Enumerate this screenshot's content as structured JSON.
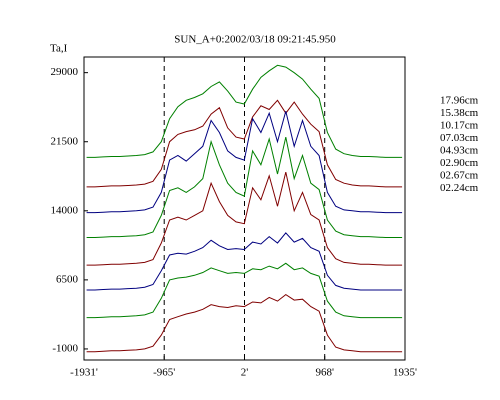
{
  "chart_data": {
    "type": "line",
    "title": "SUN_A+0:2002/03/18 09:21:45.950",
    "y_label": "Ta,I",
    "x": [
      -1900,
      -1800,
      -1700,
      -1600,
      -1500,
      -1400,
      -1300,
      -1200,
      -1100,
      -1000,
      -900,
      -800,
      -700,
      -600,
      -500,
      -400,
      -300,
      -200,
      -100,
      0,
      100,
      200,
      300,
      400,
      500,
      600,
      700,
      800,
      900,
      1000,
      1100,
      1200,
      1300,
      1400,
      1500,
      1600,
      1700,
      1800,
      1900
    ],
    "series": [
      {
        "name": "17.96cm",
        "color": "#008000",
        "values": [
          19800,
          19800,
          19850,
          19900,
          19900,
          19950,
          20000,
          20100,
          20400,
          21500,
          24000,
          25300,
          26000,
          26300,
          26700,
          27500,
          28000,
          27000,
          25800,
          25600,
          27200,
          28500,
          29200,
          29800,
          29600,
          29000,
          28300,
          27200,
          26200,
          22500,
          20700,
          20200,
          20000,
          19900,
          19900,
          19850,
          19800,
          19800,
          19800
        ]
      },
      {
        "name": "15.38cm",
        "color": "#800000",
        "values": [
          16600,
          16600,
          16650,
          16700,
          16700,
          16750,
          16800,
          16900,
          17200,
          18500,
          21500,
          22300,
          22600,
          22800,
          23200,
          24500,
          25200,
          23000,
          22000,
          21800,
          24200,
          25400,
          25000,
          26000,
          24600,
          25800,
          24500,
          23400,
          22600,
          19000,
          17400,
          17000,
          16800,
          16700,
          16700,
          16650,
          16600,
          16600,
          16600
        ]
      },
      {
        "name": "10.17cm",
        "color": "#000080",
        "values": [
          13800,
          13800,
          13850,
          13900,
          13900,
          13950,
          14000,
          14100,
          14400,
          16000,
          19500,
          20000,
          19400,
          20200,
          21000,
          23800,
          22500,
          20500,
          19800,
          19500,
          24000,
          22500,
          24600,
          21500,
          24800,
          21000,
          23800,
          21000,
          20000,
          16000,
          14500,
          14100,
          14000,
          13900,
          13900,
          13850,
          13800,
          13800,
          13800
        ]
      },
      {
        "name": "07.03cm",
        "color": "#008000",
        "values": [
          11100,
          11100,
          11150,
          11200,
          11200,
          11250,
          11300,
          11400,
          11700,
          13500,
          16200,
          16500,
          16000,
          16600,
          17500,
          21500,
          19000,
          17000,
          16000,
          15600,
          20500,
          19000,
          21800,
          18000,
          22000,
          17500,
          20000,
          17000,
          16300,
          13000,
          11800,
          11400,
          11300,
          11200,
          11200,
          11150,
          11100,
          11100,
          11100
        ]
      },
      {
        "name": "04.93cm",
        "color": "#800000",
        "values": [
          8100,
          8100,
          8150,
          8200,
          8200,
          8250,
          8300,
          8400,
          8700,
          10500,
          13000,
          13300,
          13000,
          13500,
          14000,
          17000,
          15000,
          13500,
          12800,
          12600,
          16500,
          15200,
          17800,
          14500,
          18200,
          14000,
          16000,
          13600,
          13000,
          10000,
          8800,
          8400,
          8300,
          8200,
          8200,
          8150,
          8100,
          8100,
          8100
        ]
      },
      {
        "name": "02.90cm",
        "color": "#000080",
        "values": [
          5400,
          5400,
          5450,
          5500,
          5500,
          5550,
          5600,
          5700,
          6000,
          7500,
          9200,
          9400,
          9300,
          9600,
          10000,
          10800,
          10200,
          9800,
          9900,
          9800,
          10600,
          10400,
          11200,
          10500,
          11600,
          10600,
          11000,
          10000,
          9600,
          7000,
          5900,
          5600,
          5500,
          5400,
          5400,
          5400,
          5400,
          5400,
          5400
        ]
      },
      {
        "name": "02.67cm",
        "color": "#008000",
        "values": [
          2400,
          2400,
          2450,
          2500,
          2500,
          2550,
          2600,
          2700,
          3000,
          4500,
          6500,
          6700,
          6800,
          7000,
          7300,
          7800,
          7500,
          7200,
          7300,
          7200,
          7700,
          7600,
          8000,
          7700,
          8300,
          7600,
          7800,
          7200,
          6900,
          4200,
          3000,
          2600,
          2500,
          2400,
          2400,
          2400,
          2400,
          2400,
          2400
        ]
      },
      {
        "name": "02.24cm",
        "color": "#800000",
        "values": [
          -1300,
          -1300,
          -1250,
          -1200,
          -1200,
          -1150,
          -1100,
          -1000,
          -700,
          500,
          2200,
          2500,
          2800,
          3000,
          3300,
          3800,
          3600,
          3500,
          3700,
          3600,
          4100,
          4000,
          4600,
          4200,
          4900,
          4300,
          4400,
          3600,
          3100,
          500,
          -800,
          -1100,
          -1200,
          -1300,
          -1300,
          -1300,
          -1300,
          -1300,
          -1300
        ]
      }
    ],
    "xlim": [
      -1931,
      1935
    ],
    "xticks": [
      {
        "value": -1931,
        "label": "-1931'"
      },
      {
        "value": -965,
        "label": "-965'"
      },
      {
        "value": 2,
        "label": "2'"
      },
      {
        "value": 968,
        "label": "968'"
      },
      {
        "value": 1935,
        "label": "1935'"
      }
    ],
    "ylim": [
      -2200,
      30700
    ],
    "yticks": [
      -1000,
      6500,
      14000,
      21500,
      29000
    ],
    "vlines": [
      -965,
      2,
      968
    ],
    "legend": "right"
  }
}
